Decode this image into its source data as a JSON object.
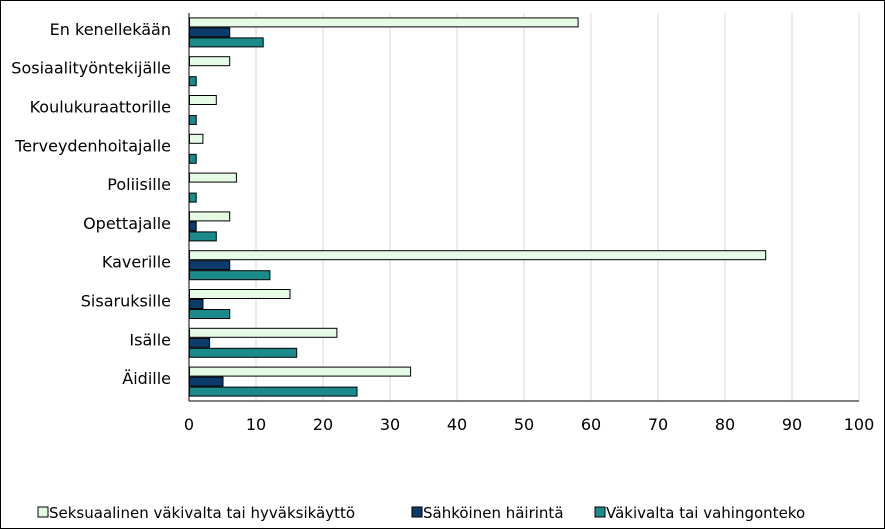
{
  "chart_data": {
    "type": "bar",
    "orientation": "horizontal",
    "title": "",
    "xlabel": "",
    "ylabel": "",
    "xlim": [
      0,
      100
    ],
    "xticks": [
      0,
      10,
      20,
      30,
      40,
      50,
      60,
      70,
      80,
      90,
      100
    ],
    "grid": true,
    "legend_position": "bottom",
    "categories": [
      "En kenellekään",
      "Sosiaalityöntekijälle",
      "Koulukuraattorille",
      "Terveydenhoitajalle",
      "Poliisille",
      "Opettajalle",
      "Kaverille",
      "Sisaruksille",
      "Isälle",
      "Äidille"
    ],
    "series": [
      {
        "name": "Seksuaalinen väkivalta tai hyväksikäyttö",
        "color": "#e6fbe6",
        "values": [
          58,
          6,
          4,
          2,
          7,
          6,
          86,
          15,
          22,
          33
        ]
      },
      {
        "name": "Sähköinen häirintä",
        "color": "#0b3a6b",
        "values": [
          6,
          0,
          0,
          0,
          0,
          1,
          6,
          2,
          3,
          5
        ]
      },
      {
        "name": "Väkivalta tai vahingonteko",
        "color": "#1b8a8a",
        "values": [
          11,
          1,
          1,
          1,
          1,
          4,
          12,
          6,
          16,
          25
        ]
      }
    ]
  }
}
